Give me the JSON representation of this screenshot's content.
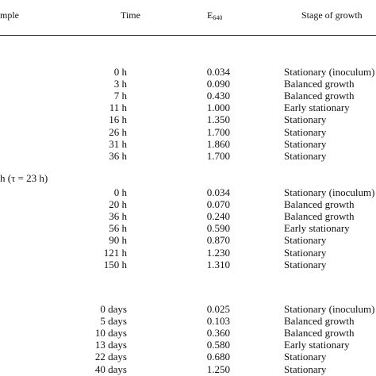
{
  "header": {
    "sample": "mple",
    "time": "Time",
    "e_main": "E",
    "e_sub": "640",
    "stage": "Stage of growth"
  },
  "group2_label": "h (τ = 23 h)",
  "rows": [
    {
      "time": "0 h",
      "e640": "0.034",
      "stage": "Stationary (inoculum)"
    },
    {
      "time": "3 h",
      "e640": "0.090",
      "stage": "Balanced growth"
    },
    {
      "time": "7 h",
      "e640": "0.430",
      "stage": "Balanced growth"
    },
    {
      "time": "11 h",
      "e640": "1.000",
      "stage": "Early stationary"
    },
    {
      "time": "16 h",
      "e640": "1.350",
      "stage": "Stationary"
    },
    {
      "time": "26 h",
      "e640": "1.700",
      "stage": "Stationary"
    },
    {
      "time": "31 h",
      "e640": "1.860",
      "stage": "Stationary"
    },
    {
      "time": "36 h",
      "e640": "1.700",
      "stage": "Stationary"
    },
    {
      "time": "0 h",
      "e640": "0.034",
      "stage": "Stationary (inoculum)"
    },
    {
      "time": "20 h",
      "e640": "0.070",
      "stage": "Balanced growth"
    },
    {
      "time": "36 h",
      "e640": "0.240",
      "stage": "Balanced growth"
    },
    {
      "time": "56 h",
      "e640": "0.590",
      "stage": "Early stationary"
    },
    {
      "time": "90 h",
      "e640": "0.870",
      "stage": "Stationary"
    },
    {
      "time": "121 h",
      "e640": "1.230",
      "stage": "Stationary"
    },
    {
      "time": "150 h",
      "e640": "1.310",
      "stage": "Stationary"
    },
    {
      "time": "0 days",
      "e640": "0.025",
      "stage": "Stationary (inoculum)"
    },
    {
      "time": "5 days",
      "e640": "0.103",
      "stage": "Balanced growth"
    },
    {
      "time": "10 days",
      "e640": "0.360",
      "stage": "Balanced growth"
    },
    {
      "time": "13 days",
      "e640": "0.580",
      "stage": "Early stationary"
    },
    {
      "time": "22 days",
      "e640": "0.680",
      "stage": "Stationary"
    },
    {
      "time": "40 days",
      "e640": "1.250",
      "stage": "Stationary"
    }
  ]
}
